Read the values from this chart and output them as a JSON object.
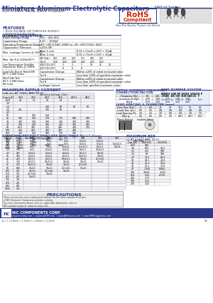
{
  "title": "Miniature Aluminum Electrolytic Capacitors",
  "series": "NRE-H Series",
  "hc": "#2d3a8c",
  "bg": "#ffffff",
  "subtitle1": "HIGH VOLTAGE, RADIAL LEADS, POLARIZED",
  "rohs_sub": "includes all homogeneous materials",
  "new_part_text": "New Part Number System for Details",
  "features": [
    "HIGH VOLTAGE (UP THROUGH 450VDC)",
    "NEW REDUCED SIZES"
  ],
  "char_data": [
    [
      "Rated Voltage Range",
      "160 ~ 450 VDC"
    ],
    [
      "Capacitance Range",
      "0.47 ~ 1000μF"
    ],
    [
      "Operating Temperature Range",
      "-40 ~ +85°C (160~200V) or -25 ~ +85°C (315 ~ 450)"
    ],
    [
      "Capacitance Tolerance",
      "±20% (M)"
    ],
    [
      "Max. Leakage Current @ (20°C)|After 1 min",
      "0.01 x C(mF) x U(V) + 10μA"
    ],
    [
      "|After 2 min",
      "0.01 x C(mF) x U(V) + 20μA"
    ],
    [
      "Max. Tan δ & 120Hz/20°C|WV (Vdc)",
      "160|200|250|315|400|450"
    ],
    [
      "|Tan δ",
      "0.20|0.20|0.20|0.25|0.25|0.25"
    ],
    [
      "Low Temperature Stability\nImpedance Ratio @ 120Hz|Z-40°C/Z+20°C",
      "3|3|3|10|12|12"
    ],
    [
      "|Z-25°C/Z+20°C",
      "8|8|8|-|-|-"
    ],
    [
      "Load Life Test at Rated WV\n85°C 2,000 Hours|Capacitance Change",
      "Within ±20% of initial measured value"
    ],
    [
      "|Tan δ",
      "Less than 200% of specified maximum value"
    ],
    [
      "Shelf Life Test\n85°C 1,000 Hours\nNo Load|Leakage Current",
      "Within ±20% of initial measured value"
    ],
    [
      "|Tan δ",
      "Less than 200% of specified maximum value"
    ],
    [
      "|Leakage Current",
      "Less than specified maximum value"
    ]
  ],
  "ripple_headers": [
    "Cap (μF)",
    "160",
    "200",
    "250",
    "315",
    "400+",
    "450"
  ],
  "ripple_vdc": "Working Voltage (Vdc)",
  "ripple_data": [
    [
      "0.47",
      "53",
      "71",
      "72",
      "54",
      "",
      ""
    ],
    [
      "1.0",
      "",
      "",
      "",
      "",
      "",
      ""
    ],
    [
      "2.2",
      "",
      "",
      "130",
      "60",
      "60",
      "60"
    ],
    [
      "3.3",
      "40s",
      "",
      "145",
      "90",
      "",
      ""
    ],
    [
      "4.7",
      "",
      "",
      "",
      "",
      "",
      ""
    ],
    [
      "10",
      "",
      "150",
      "164",
      "",
      "",
      ""
    ],
    [
      "22",
      "103",
      "160",
      "170",
      "175",
      "180",
      "180"
    ],
    [
      "33",
      "145",
      "210",
      "230",
      "215",
      "230",
      "230"
    ],
    [
      "47",
      "195",
      "260",
      "295",
      "285",
      "295",
      "295"
    ],
    [
      "68",
      "80.5",
      "320",
      "355",
      "340",
      "340",
      "270"
    ],
    [
      "100",
      "285",
      "400",
      "430",
      "435",
      "440",
      ""
    ],
    [
      "150",
      "360",
      "510",
      "580",
      "570",
      "540",
      ""
    ],
    [
      "220",
      "500",
      "640",
      "700",
      "685",
      "360",
      ""
    ],
    [
      "330",
      "740",
      "930",
      "960",
      "960",
      "",
      ""
    ],
    [
      "470",
      "900",
      "1200",
      "",
      "",
      "",
      ""
    ],
    [
      "680",
      "1015",
      "1415",
      "1440",
      "1440",
      "",
      ""
    ],
    [
      "1000",
      "1560",
      "",
      "",
      "",
      "",
      ""
    ]
  ],
  "freq_headers": [
    "Frequency (Hz)",
    "60",
    "120",
    "1k",
    "10k",
    "100k"
  ],
  "freq_data": [
    [
      "In excess of 10μF",
      "0.75",
      "1.00",
      "1.15",
      "1.20",
      "1.20"
    ],
    [
      "Factor",
      "0.75",
      "1.00",
      "1.15",
      "1.25",
      "1.25"
    ]
  ],
  "lead_headers": [
    "Case Size (Dφ)",
    "5",
    "6.3",
    "8",
    "10",
    "12.5",
    "16",
    "18"
  ],
  "lead_data": [
    [
      "Leads Dia. (φL)",
      "0.5",
      "0.5",
      "0.6",
      "0.6",
      "0.8",
      "0.8",
      "0.8"
    ],
    [
      "Lead Spacing (F)",
      "2.0",
      "2.5",
      "3.5",
      "5.0",
      "5.0",
      "7.5",
      "7.5"
    ],
    [
      "Wire φ",
      "0.5",
      "0.5",
      "0.5",
      "0.5",
      "0.67",
      "0.67",
      "0.67"
    ]
  ],
  "part_number_text": "NREH 100 M 250V 10X20 F",
  "std_title": "STANDARD PRODUCT AND CASE SIZE TABLE Dφ x L (mm)",
  "std_vdc": "Working Voltage (Vdc)",
  "std_headers": [
    "Cap μF",
    "Code",
    "160",
    "200",
    "250",
    "315",
    "400",
    "450"
  ],
  "std_data": [
    [
      "0.47",
      "R47",
      "5x11",
      "5x11",
      "5x11",
      "6.3x11",
      "6.3x11",
      "-"
    ],
    [
      "1.0",
      "1R0",
      "5x11",
      "5x11",
      "5x11",
      "6.3x11",
      "6.3x11",
      "6.3x12.5"
    ],
    [
      "2.2",
      "2R2",
      "5x11",
      "5x11",
      "6.3x11",
      "6.3x11.5",
      "8x11.5",
      "10x16"
    ],
    [
      "3.3",
      "3R3",
      "5x11",
      "6.3x11",
      "6.3x11",
      "8x11.5",
      "10x12.5",
      "-"
    ],
    [
      "4.7",
      "4R7",
      "6.3x11",
      "6.3x11",
      "6.3x11",
      "8x11.5",
      "10x16",
      "-"
    ],
    [
      "10",
      "100",
      "6.3x11",
      "6.3x11",
      "8x11.5",
      "10x12.5",
      "10x20",
      "-"
    ],
    [
      "22",
      "220",
      "8x11.5",
      "8x11.5",
      "10x12.5",
      "10x16",
      "12.5x20",
      "-"
    ],
    [
      "33",
      "330",
      "8x11.5",
      "10x12.5",
      "10x16",
      "10x20",
      "16x20",
      "-"
    ],
    [
      "47",
      "470",
      "10x12.5",
      "10x16",
      "10x20",
      "12.5x20",
      "-",
      "-"
    ],
    [
      "68",
      "680",
      "10x20",
      "10x20",
      "12.5x20",
      "16x20",
      "-",
      "-"
    ],
    [
      "100",
      "101",
      "10x20",
      "12.5x20",
      "16x20",
      "-",
      "-",
      "-"
    ],
    [
      "150",
      "151",
      "12.5x20",
      "16x20",
      "-",
      "-",
      "-",
      "-"
    ],
    [
      "220",
      "221",
      "16x20",
      "-",
      "-",
      "-",
      "-",
      "-"
    ],
    [
      "330",
      "331",
      "-",
      "-",
      "-",
      "-",
      "-",
      "-"
    ],
    [
      "470",
      "471",
      "-",
      "-",
      "-",
      "-",
      "-",
      "-"
    ],
    [
      "680",
      "681",
      "-",
      "-",
      "-",
      "-",
      "-",
      "-"
    ],
    [
      "1000",
      "102",
      "-",
      "-",
      "-",
      "-",
      "-",
      "-"
    ]
  ],
  "esr_title": "MAXIMUM ESR",
  "esr_subtitle": "(Ω AT 120HZ AND 20 C)",
  "esr_vdc": "WV (Vdc)",
  "esr_headers": [
    "Cap (μF)",
    "160/200",
    "250/450"
  ],
  "esr_data": [
    [
      "0.47",
      "900",
      ""
    ],
    [
      "1.0",
      "502",
      "41.5"
    ],
    [
      "2.2",
      "131",
      "188"
    ],
    [
      "3.3",
      "88",
      "188"
    ],
    [
      "4.7",
      "70.5",
      "84.3"
    ],
    [
      "10",
      "33.1",
      "41.9"
    ],
    [
      "22",
      "15.1",
      "19.6"
    ],
    [
      "33",
      "10.1",
      "12.8"
    ],
    [
      "47",
      "7.105",
      "8.982"
    ],
    [
      "100",
      "4.044",
      "4.115"
    ],
    [
      "150",
      "3.22",
      "4.175"
    ],
    [
      "220",
      "2.77",
      ""
    ],
    [
      "330",
      "1.53",
      ""
    ],
    [
      "470",
      "1.01",
      ""
    ]
  ],
  "precautions_title": "PRECAUTIONS",
  "precautions_text": "Please review the entire catalog and website for the latest updates/revisions\nof NIC Electronic Components product catalog.\nFor more information please visit our applicable datasheets, refer to\nNIC's product page at: www.niccomp.com",
  "footer_logo": "nc",
  "footer_company": "NIC COMPONENTS CORP.",
  "footer_urls": "www.niccomp.com  |  www.lowESR.com  |  www.AiPassives.com  |  www.SMTmagnetics.com",
  "footer_note": "φ = L x 20mm = 1.5mm, L x 20mm = 2.0mm",
  "page_num": "51"
}
